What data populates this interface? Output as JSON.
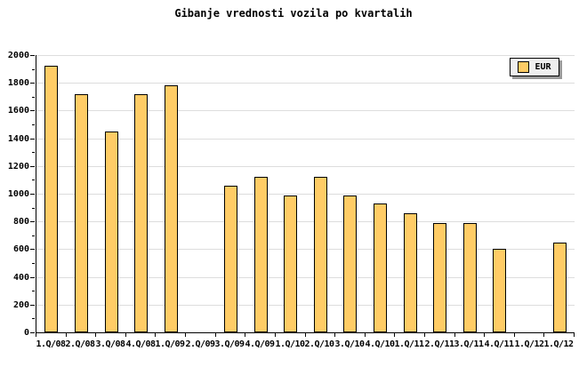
{
  "title": "Gibanje vrednosti vozila po kvartalih",
  "legend": {
    "label": "EUR"
  },
  "colors": {
    "bar_fill": "#FFCC66",
    "bar_border": "#000000",
    "grid": "#DDDDDD",
    "axis": "#000000",
    "legend_bg": "#EFEFEF",
    "legend_shadow": "#999999",
    "background": "#FFFFFF",
    "text": "#000000"
  },
  "chart_data": {
    "type": "bar",
    "title": "Gibanje vrednosti vozila po kvartalih",
    "series_name": "EUR",
    "categories": [
      "1.Q/08",
      "2.Q/08",
      "3.Q/08",
      "4.Q/08",
      "1.Q/09",
      "2.Q/09",
      "3.Q/09",
      "4.Q/09",
      "1.Q/10",
      "2.Q/10",
      "3.Q/10",
      "4.Q/10",
      "1.Q/11",
      "2.Q/11",
      "3.Q/11",
      "4.Q/11",
      "1.Q/12",
      "1.Q/12"
    ],
    "values": [
      1920,
      1720,
      1450,
      1720,
      1780,
      null,
      1060,
      1120,
      990,
      1120,
      990,
      930,
      860,
      790,
      790,
      600,
      null,
      650
    ],
    "xlabel": "",
    "ylabel": "",
    "ylim": [
      0,
      2000
    ],
    "ytick_major": 200,
    "ytick_minor": 100,
    "yticks": [
      "0",
      "200",
      "400",
      "600",
      "800",
      "1000",
      "1200",
      "1400",
      "1600",
      "1800",
      "2000"
    ],
    "grid": "horizontal",
    "legend_position": "top-right"
  }
}
